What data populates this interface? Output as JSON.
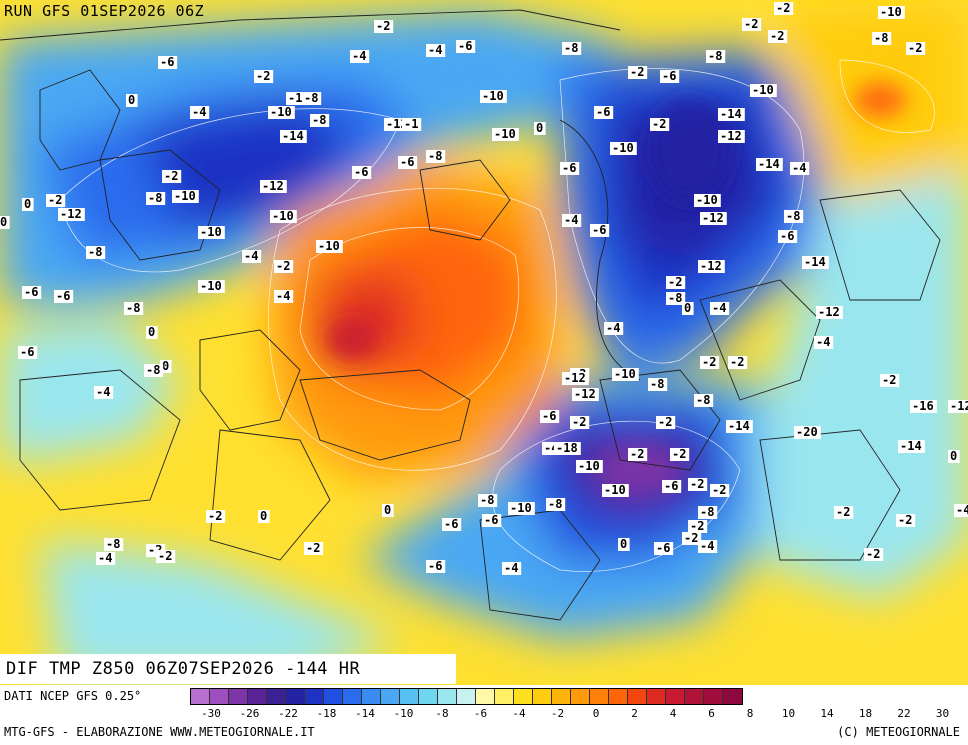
{
  "header": {
    "run_title": "RUN GFS 01SEP2026 06Z"
  },
  "product": {
    "title": "DIF TMP Z850 06Z07SEP2026 -144 HR"
  },
  "footer": {
    "data_source": "DATI NCEP GFS 0.25°",
    "credit_left": "MTG-GFS - ELABORAZIONE WWW.METEOGIORNALE.IT",
    "credit_right": "(C) METEOGIORNALE"
  },
  "legend": {
    "swatch_colors": [
      "#b76fd0",
      "#9d4fbf",
      "#7d35a8",
      "#5b2398",
      "#3a2295",
      "#2323a3",
      "#1f32c4",
      "#2150e0",
      "#2a6cee",
      "#3a8cf2",
      "#4aa7f4",
      "#58c1f3",
      "#6fd6ef",
      "#9ae6ef",
      "#c8f2f2",
      "#fff8a8",
      "#fff066",
      "#ffe020",
      "#ffcc10",
      "#ffb40c",
      "#ff9a0a",
      "#ff8008",
      "#ff6408",
      "#f24610",
      "#de2a20",
      "#c81a30",
      "#b01238",
      "#a00c3c",
      "#8c083e"
    ],
    "tick_labels": [
      "-30",
      "-26",
      "-22",
      "-18",
      "-14",
      "-10",
      "-8",
      "-6",
      "-4",
      "-2",
      "0",
      "2",
      "4",
      "6",
      "8",
      "10",
      "14",
      "18",
      "22",
      "30"
    ]
  },
  "isotherm_labels": [
    "-2",
    "-10",
    "-2",
    "-2",
    "-8",
    "-2",
    "-2",
    "-6",
    "-4",
    "-4",
    "-6",
    "-8",
    "-2",
    "-8",
    "-6",
    "-2",
    "-12",
    "-8",
    "-10",
    "-10",
    "0",
    "-4",
    "-10",
    "-8",
    "-12",
    "-1",
    "-10",
    "0",
    "-6",
    "-2",
    "-14",
    "-14",
    "-12",
    "-6",
    "-8",
    "-2",
    "-6",
    "-10",
    "-14",
    "-4",
    "-6",
    "-8",
    "-10",
    "-12",
    "0",
    "-2",
    "0",
    "-12",
    "-10",
    "-10",
    "-12",
    "-8",
    "-10",
    "-4",
    "-6",
    "-6",
    "-4",
    "-10",
    "-2",
    "-8",
    "-12",
    "-14",
    "-6",
    "-2",
    "-6",
    "-10",
    "-8",
    "-4",
    "0",
    "-4",
    "-12",
    "-8",
    "-4",
    "0",
    "-6",
    "-4",
    "-2",
    "-2",
    "-2",
    "0",
    "-8",
    "-12",
    "-10",
    "-8",
    "-2",
    "-4",
    "-12",
    "-8",
    "-16",
    "-12",
    "-6",
    "-2",
    "-2",
    "-14",
    "-20",
    "-14",
    "-4",
    "-18",
    "-10",
    "-2",
    "-2",
    "0",
    "-8",
    "-10",
    "-6",
    "-2",
    "-2",
    "-8",
    "-10",
    "-8",
    "-2",
    "0",
    "0",
    "-2",
    "-2",
    "-4",
    "-6",
    "-6",
    "-2",
    "-8",
    "-2",
    "-4",
    "-2",
    "-2",
    "0",
    "-6",
    "-2",
    "-4",
    "-2",
    "-6",
    "-4"
  ],
  "map": {
    "colors": {
      "land_border": "#222222",
      "isoline": "#ffffff"
    }
  }
}
